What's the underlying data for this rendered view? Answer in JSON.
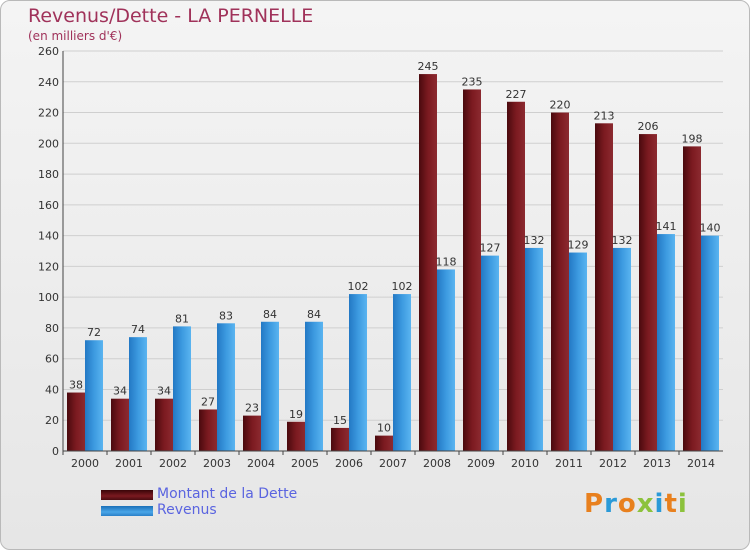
{
  "title": "Revenus/Dette - LA PERNELLE",
  "subtitle": "(en milliers d'€)",
  "colors": {
    "dette": "#7b1a20",
    "revenus": "#3c9ae0",
    "title": "#a0325a"
  },
  "chart_data": {
    "type": "bar",
    "categories": [
      "2000",
      "2001",
      "2002",
      "2003",
      "2004",
      "2005",
      "2006",
      "2007",
      "2008",
      "2009",
      "2010",
      "2011",
      "2012",
      "2013",
      "2014"
    ],
    "series": [
      {
        "name": "Montant de la Dette",
        "values": [
          38,
          34,
          34,
          27,
          23,
          19,
          15,
          10,
          245,
          235,
          227,
          220,
          213,
          206,
          198
        ]
      },
      {
        "name": "Revenus",
        "values": [
          72,
          74,
          81,
          83,
          84,
          84,
          102,
          102,
          118,
          127,
          132,
          129,
          132,
          141,
          140
        ]
      }
    ],
    "ylim": [
      0,
      260
    ],
    "yticks": [
      0,
      20,
      40,
      60,
      80,
      100,
      120,
      140,
      160,
      180,
      200,
      220,
      240,
      260
    ],
    "grid": true,
    "legend": "bottom-left"
  },
  "legend": {
    "items": [
      "Montant de la Dette",
      "Revenus"
    ]
  },
  "logo": {
    "letters": [
      "P",
      "r",
      "o",
      "x",
      "i",
      "t",
      "i"
    ]
  }
}
